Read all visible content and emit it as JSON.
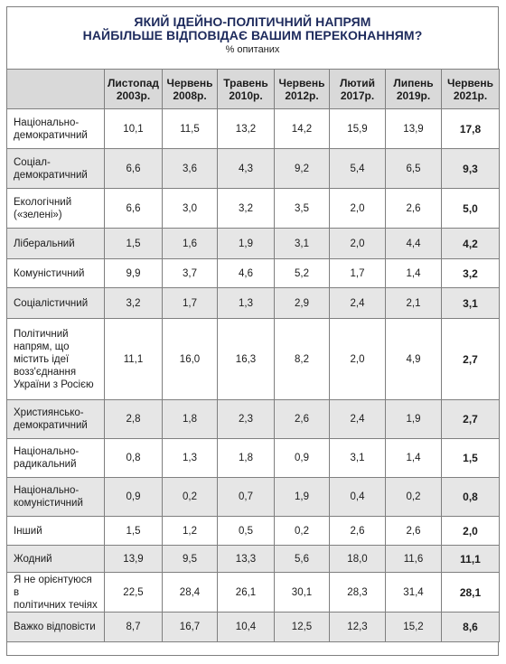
{
  "title_line1": "ЯКИЙ ІДЕЙНО-ПОЛІТИЧНИЙ НАПРЯМ",
  "title_line2": "НАЙБІЛЬШЕ ВІДПОВІДАЄ ВАШИМ ПЕРЕКОНАННЯМ?",
  "subtitle": "% опитаних",
  "columns": [
    {
      "line1": "Листопад",
      "line2": "2003р."
    },
    {
      "line1": "Червень",
      "line2": "2008р."
    },
    {
      "line1": "Травень",
      "line2": "2010р."
    },
    {
      "line1": "Червень",
      "line2": "2012р."
    },
    {
      "line1": "Лютий",
      "line2": "2017р."
    },
    {
      "line1": "Липень",
      "line2": "2019р."
    },
    {
      "line1": "Червень",
      "line2": "2021р."
    }
  ],
  "rows": [
    {
      "label": [
        "Національно-",
        "демократичний"
      ],
      "values": [
        "10,1",
        "11,5",
        "13,2",
        "14,2",
        "15,9",
        "13,9",
        "17,8"
      ]
    },
    {
      "label": [
        "Соціал-",
        "демократичний"
      ],
      "values": [
        "6,6",
        "3,6",
        "4,3",
        "9,2",
        "5,4",
        "6,5",
        "9,3"
      ]
    },
    {
      "label": [
        "Екологічний",
        "(«зелені»)"
      ],
      "values": [
        "6,6",
        "3,0",
        "3,2",
        "3,5",
        "2,0",
        "2,6",
        "5,0"
      ]
    },
    {
      "label": [
        "Ліберальний"
      ],
      "values": [
        "1,5",
        "1,6",
        "1,9",
        "3,1",
        "2,0",
        "4,4",
        "4,2"
      ]
    },
    {
      "label": [
        "Комуністичний"
      ],
      "values": [
        "9,9",
        "3,7",
        "4,6",
        "5,2",
        "1,7",
        "1,4",
        "3,2"
      ]
    },
    {
      "label": [
        "Соціалістичний"
      ],
      "values": [
        "3,2",
        "1,7",
        "1,3",
        "2,9",
        "2,4",
        "2,1",
        "3,1"
      ]
    },
    {
      "label": [
        "Політичний",
        "напрям, що",
        "містить ідеї",
        "возз'єднання",
        "України з Росією"
      ],
      "values": [
        "11,1",
        "16,0",
        "16,3",
        "8,2",
        "2,0",
        "4,9",
        "2,7"
      ]
    },
    {
      "label": [
        "Християнсько-",
        "демократичний"
      ],
      "values": [
        "2,8",
        "1,8",
        "2,3",
        "2,6",
        "2,4",
        "1,9",
        "2,7"
      ]
    },
    {
      "label": [
        "Національно-",
        "радикальний"
      ],
      "values": [
        "0,8",
        "1,3",
        "1,8",
        "0,9",
        "3,1",
        "1,4",
        "1,5"
      ]
    },
    {
      "label": [
        "Національно-",
        "комуністичний"
      ],
      "values": [
        "0,9",
        "0,2",
        "0,7",
        "1,9",
        "0,4",
        "0,2",
        "0,8"
      ]
    },
    {
      "label": [
        "Інший"
      ],
      "values": [
        "1,5",
        "1,2",
        "0,5",
        "0,2",
        "2,6",
        "2,6",
        "2,0"
      ]
    },
    {
      "label": [
        "Жодний"
      ],
      "values": [
        "13,9",
        "9,5",
        "13,3",
        "5,6",
        "18,0",
        "11,6",
        "11,1"
      ]
    },
    {
      "label": [
        "Я не орієнтуюся в",
        "політичних течіях"
      ],
      "values": [
        "22,5",
        "28,4",
        "26,1",
        "30,1",
        "28,3",
        "31,4",
        "28,1"
      ]
    },
    {
      "label": [
        "Важко відповісти"
      ],
      "values": [
        "8,7",
        "16,7",
        "10,4",
        "12,5",
        "12,3",
        "15,2",
        "8,6"
      ]
    }
  ],
  "colors": {
    "title": "#1d2a5c",
    "header_bg": "#d9d9d9",
    "row_shade": "#e6e6e6",
    "border": "#7f7f7f"
  }
}
